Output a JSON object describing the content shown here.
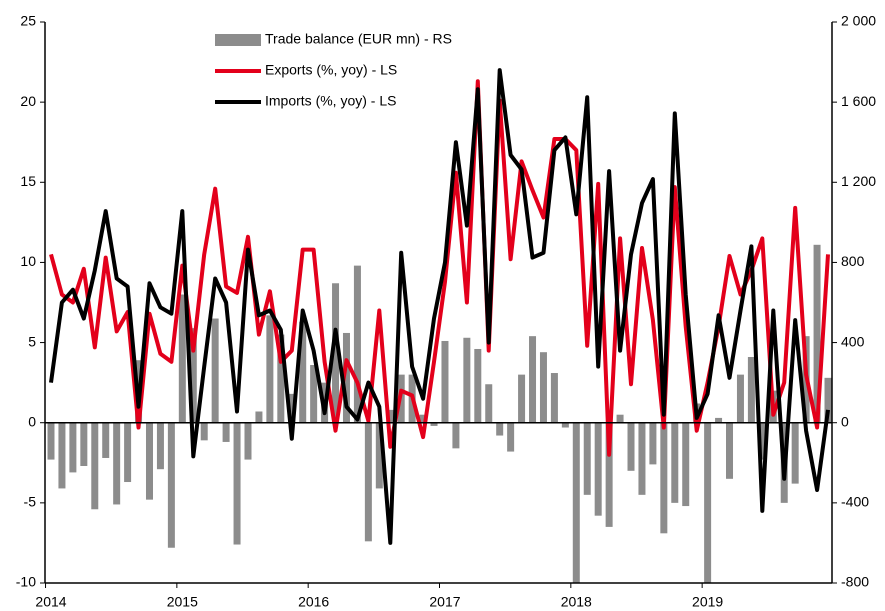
{
  "chart_data": {
    "type": "bar-line",
    "categories": [
      "2014",
      null,
      null,
      null,
      null,
      null,
      null,
      null,
      null,
      null,
      null,
      null,
      "2015",
      null,
      null,
      null,
      null,
      null,
      null,
      null,
      null,
      null,
      null,
      null,
      "2016",
      null,
      null,
      null,
      null,
      null,
      null,
      null,
      null,
      null,
      null,
      null,
      "2017",
      null,
      null,
      null,
      null,
      null,
      null,
      null,
      null,
      null,
      null,
      null,
      "2018",
      null,
      null,
      null,
      null,
      null,
      null,
      null,
      null,
      null,
      null,
      null,
      "2019",
      null,
      null,
      null,
      null,
      null,
      null,
      null,
      null,
      null,
      null,
      null
    ],
    "series": [
      {
        "name": "Trade balance (EUR mn) - RS",
        "color": "#8c8c8c",
        "kind": "bar",
        "axis": "y2",
        "values": [
          -184,
          -328,
          -248,
          -216,
          -432,
          -176,
          -408,
          -296,
          312,
          -384,
          -232,
          -624,
          640,
          472,
          -88,
          520,
          -96,
          -608,
          -184,
          56,
          536,
          440,
          144,
          504,
          288,
          200,
          696,
          448,
          784,
          -592,
          -328,
          64,
          240,
          240,
          40,
          -16,
          408,
          -128,
          424,
          368,
          192,
          -64,
          -144,
          240,
          432,
          352,
          248,
          -24,
          -800,
          -360,
          -464,
          -520,
          40,
          -240,
          -360,
          -208,
          -552,
          -400,
          -416,
          96,
          -800,
          24,
          -280,
          240,
          328,
          -184,
          160,
          -400,
          -304,
          432,
          888,
          224
        ]
      },
      {
        "name": "Exports (%, yoy) - LS",
        "color": "#e3001b",
        "kind": "line",
        "values": [
          10.5,
          8,
          7.5,
          9.6,
          4.7,
          10.3,
          5.7,
          6.9,
          -0.3,
          6.8,
          4.3,
          3.8,
          9.8,
          4.5,
          10.5,
          14.6,
          8.5,
          8.1,
          11.6,
          5.5,
          8.2,
          3.8,
          4.5,
          10.8,
          10.8,
          3.8,
          -0.5,
          3.9,
          2.5,
          0.1,
          7.0,
          -1.5,
          2.0,
          1.7,
          -0.9,
          3.8,
          8.8,
          15.6,
          7.5,
          21.3,
          4.5,
          20.1,
          10.2,
          16.3,
          14.5,
          12.8,
          17.7,
          17.7,
          17.0,
          4.8,
          14.9,
          -2.0,
          11.5,
          2.4,
          10.9,
          6.4,
          -0.3,
          14.7,
          6.0,
          -0.5,
          2.5,
          6.0,
          10.4,
          8.0,
          9.5,
          11.5,
          0.5,
          2.5,
          13.4,
          3.0,
          -0.3,
          10.5
        ]
      },
      {
        "name": "Imports (%, yoy) - LS",
        "color": "#000000",
        "kind": "line",
        "values": [
          2.5,
          7.5,
          8.3,
          6.5,
          9.5,
          13.2,
          9.0,
          8.5,
          1.0,
          8.7,
          7.2,
          6.8,
          13.2,
          -2.1,
          3.5,
          9.0,
          7.5,
          0.7,
          10.8,
          6.7,
          7.0,
          5.8,
          -1.0,
          7.0,
          4.5,
          0.6,
          5.8,
          1.0,
          0.2,
          2.5,
          1.0,
          -7.5,
          10.6,
          3.5,
          1.5,
          6.5,
          10.0,
          17.5,
          12.3,
          20.8,
          5.0,
          22.0,
          16.7,
          15.8,
          10.3,
          10.6,
          17.0,
          17.8,
          13.0,
          20.3,
          3.5,
          15.7,
          4.5,
          10.5,
          13.7,
          15.2,
          0.5,
          19.3,
          8.0,
          0.3,
          1.8,
          6.7,
          2.8,
          7.0,
          11.0,
          -5.5,
          7.0,
          -3.5,
          6.4,
          -0.5,
          -4.2,
          0.8
        ]
      }
    ],
    "ylim": [
      -10,
      25
    ],
    "yticks": [
      -10,
      -5,
      0,
      5,
      10,
      15,
      20,
      25
    ],
    "y2lim": [
      -800,
      2000
    ],
    "y2ticks": [
      -800,
      -400,
      0,
      400,
      800,
      {
        "value": 1200,
        "label": "1 200"
      },
      {
        "value": 1600,
        "label": "1 600"
      },
      {
        "value": 2000,
        "label": "2 000"
      }
    ],
    "legend": "upper-left",
    "grid": false
  }
}
